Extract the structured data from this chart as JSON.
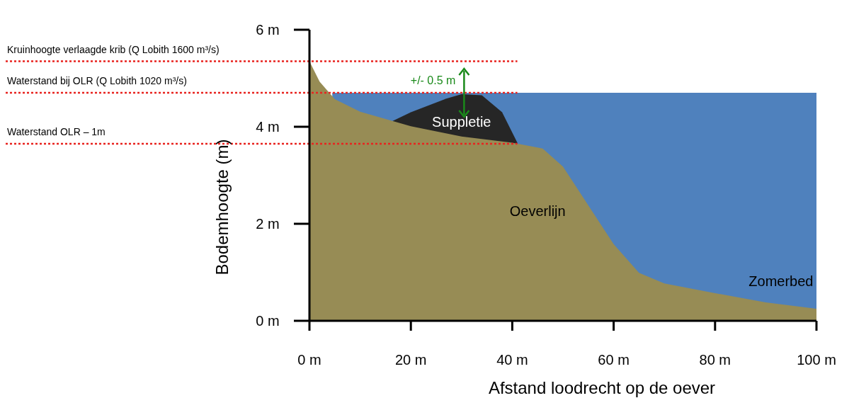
{
  "chart_data": {
    "type": "area",
    "xlabel": "Afstand loodrecht op de oever",
    "ylabel": "Bodemhoogte (m)",
    "xlim": [
      0,
      100
    ],
    "ylim": [
      0,
      6
    ],
    "xticks": [
      {
        "value": 0,
        "label": "0 m"
      },
      {
        "value": 20,
        "label": "20 m"
      },
      {
        "value": 40,
        "label": "40 m"
      },
      {
        "value": 60,
        "label": "60 m"
      },
      {
        "value": 80,
        "label": "80 m"
      },
      {
        "value": 100,
        "label": "100 m"
      }
    ],
    "yticks": [
      {
        "value": 0,
        "label": "0 m"
      },
      {
        "value": 2,
        "label": "2 m"
      },
      {
        "value": 4,
        "label": "4 m"
      },
      {
        "value": 6,
        "label": "6 m"
      }
    ],
    "series": [
      {
        "name": "Zomerbed",
        "color": "#4f81bd",
        "x": [
          4.5,
          100
        ],
        "values": [
          4.7,
          4.7
        ]
      },
      {
        "name": "Suppletie",
        "color": "#262626",
        "x": [
          16,
          20,
          23,
          27,
          30,
          34,
          38,
          41
        ],
        "values": [
          4.1,
          4.3,
          4.42,
          4.58,
          4.67,
          4.65,
          4.3,
          3.67
        ]
      },
      {
        "name": "Oeverlijn",
        "color": "#978c55",
        "x": [
          0,
          2,
          5,
          10,
          20,
          30,
          40,
          46,
          50,
          55,
          60,
          65,
          70,
          80,
          90,
          100
        ],
        "values": [
          5.35,
          4.93,
          4.57,
          4.31,
          4.01,
          3.8,
          3.67,
          3.55,
          3.18,
          2.38,
          1.58,
          0.99,
          0.77,
          0.57,
          0.38,
          0.25
        ]
      }
    ],
    "ref_lines": [
      {
        "axis": "y",
        "value": 5.35,
        "label": "Kruinhoogte verlaagde krib (Q Lobith 1600 m³/s)",
        "color": "#e8231f",
        "line_style": "dotted"
      },
      {
        "axis": "y",
        "value": 4.7,
        "label": "Waterstand bij OLR (Q Lobith 1020 m³/s)",
        "color": "#e8231f",
        "line_style": "dotted"
      },
      {
        "axis": "y",
        "value": 3.65,
        "label": "Waterstand OLR – 1m",
        "color": "#e8231f",
        "line_style": "dotted"
      }
    ],
    "annotations": [
      "+/- 0.5 m"
    ],
    "grid": false,
    "legend": false
  }
}
